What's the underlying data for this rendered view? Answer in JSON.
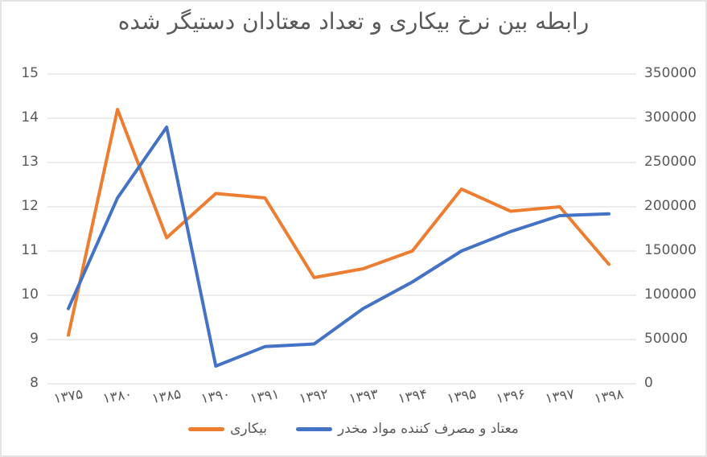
{
  "chart_data": {
    "type": "line",
    "title": "رابطه بین نرخ بیکاری و تعداد معتادان دستیگر شده",
    "categories": [
      "۱۳۷۵",
      "۱۳۸۰",
      "۱۳۸۵",
      "۱۳۹۰",
      "۱۳۹۱",
      "۱۳۹۲",
      "۱۳۹۳",
      "۱۳۹۴",
      "۱۳۹۵",
      "۱۳۹۶",
      "۱۳۹۷",
      "۱۳۹۸"
    ],
    "series": [
      {
        "name": "بیکاری",
        "axis": "left",
        "color": "#ED7D31",
        "values": [
          9.1,
          14.2,
          11.3,
          12.3,
          12.2,
          10.4,
          10.6,
          11.0,
          12.4,
          11.9,
          12.0,
          10.7
        ]
      },
      {
        "name": "معتاد و مصرف کننده مواد مخدر",
        "axis": "right",
        "color": "#4472C4",
        "values": [
          85000,
          210000,
          290000,
          20000,
          42000,
          45000,
          85000,
          115000,
          150000,
          172000,
          190000,
          192000
        ]
      }
    ],
    "axis_left": {
      "min": 8,
      "max": 15,
      "ticks": [
        "15",
        "14",
        "13",
        "12",
        "11",
        "10",
        "9",
        "8"
      ]
    },
    "axis_right": {
      "min": 0,
      "max": 350000,
      "ticks": [
        "350000",
        "300000",
        "250000",
        "200000",
        "150000",
        "100000",
        "50000",
        "0"
      ]
    },
    "grid": true,
    "legend_position": "bottom"
  },
  "styles": {
    "grid_color": "#D9D9D9",
    "text_color": "#595959",
    "background": "#FFFFFF",
    "line_width": 4
  }
}
